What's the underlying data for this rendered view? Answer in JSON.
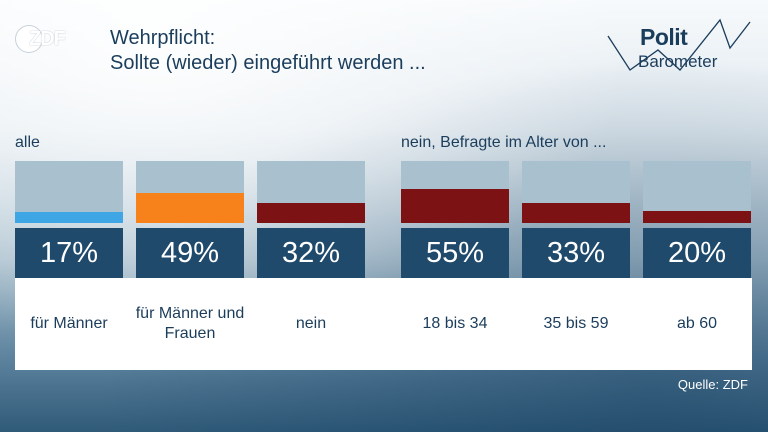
{
  "brand": {
    "logo_text": "ZDF",
    "polit": "Polit",
    "barometer": "Barometer"
  },
  "title": {
    "line1": "Wehrpflicht:",
    "line2": "Sollte (wieder) eingeführt werden ..."
  },
  "groups": [
    {
      "label": "alle"
    },
    {
      "label": "nein, Befragte im Alter von ..."
    }
  ],
  "source": "Quelle: ZDF",
  "chart_data": {
    "type": "bar",
    "ylim": [
      0,
      100
    ],
    "categories": [
      "für Männer",
      "für Männer und Frauen",
      "nein",
      "18 bis 34",
      "35 bis 59",
      "ab 60"
    ],
    "values": [
      17,
      49,
      32,
      55,
      33,
      20
    ],
    "value_labels": [
      "17%",
      "49%",
      "32%",
      "55%",
      "33%",
      "20%"
    ],
    "colors": [
      "#3fa6e6",
      "#f7821b",
      "#7d1214",
      "#7d1214",
      "#7d1214",
      "#7d1214"
    ],
    "background_color": "#a9c1cf"
  }
}
